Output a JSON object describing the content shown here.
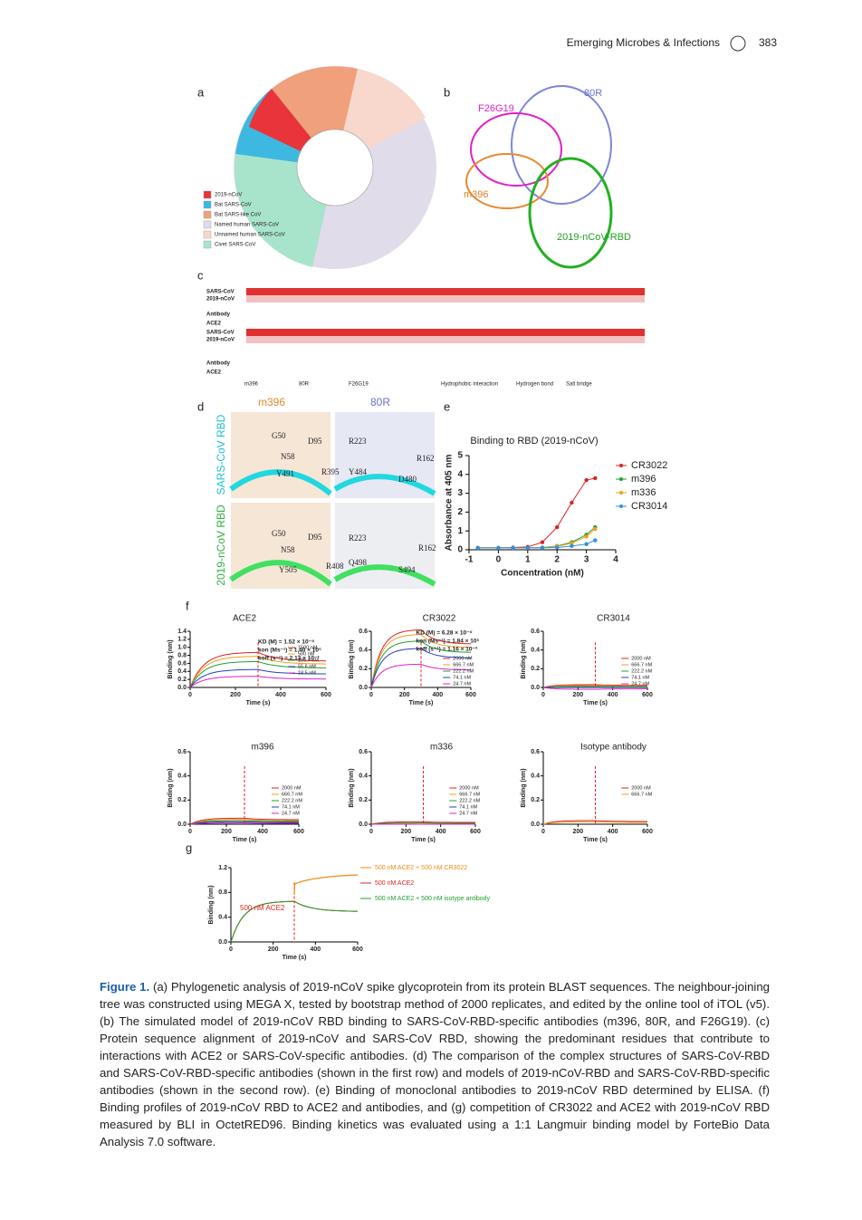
{
  "header": {
    "journal": "Emerging Microbes & Infections",
    "page": "383"
  },
  "panel_a": {
    "label": "a",
    "legend": [
      {
        "name": "2019-nCoV",
        "color": "#e8343a"
      },
      {
        "name": "Bat SARS-CoV",
        "color": "#3db8e0"
      },
      {
        "name": "Bat SARS-like CoV",
        "color": "#f0a07a"
      },
      {
        "name": "Named human SARS-CoV",
        "color": "#e0dcea"
      },
      {
        "name": "Unnamed human SARS-CoV",
        "color": "#f8d8cc"
      },
      {
        "name": "Civet SARS-CoV",
        "color": "#a8e4cc"
      }
    ]
  },
  "panel_b": {
    "label": "b",
    "names": [
      {
        "text": "F26G19",
        "color": "#e020c8"
      },
      {
        "text": "80R",
        "color": "#6a72c8"
      },
      {
        "text": "m396",
        "color": "#e08020"
      },
      {
        "text": "2019-nCoV-RBD",
        "color": "#22a022"
      }
    ]
  },
  "panel_c": {
    "label": "c",
    "rows": [
      "SARS-CoV",
      "2019-nCoV",
      "Antibody",
      "ACE2",
      "SARS-CoV",
      "2019-nCoV",
      "Antibody",
      "ACE2"
    ],
    "key": [
      "m396",
      "80R",
      "F26G19",
      "Hydrophobic interaction",
      "Hydrogen bond",
      "Salt bridge"
    ]
  },
  "panel_d": {
    "label": "d",
    "columns": [
      "m396",
      "80R"
    ],
    "rows": [
      "SARS-CoV RBD",
      "2019-nCoV RBD"
    ],
    "residues": [
      "G50",
      "D95",
      "N58",
      "Y491",
      "R395",
      "R223",
      "R162",
      "Y484",
      "D480",
      "G50",
      "D95",
      "N58",
      "Y505",
      "R408",
      "R223",
      "R162",
      "Q498",
      "S494"
    ]
  },
  "panel_e": {
    "label": "e",
    "type": "scatter",
    "title": "Binding to RBD (2019-nCoV)",
    "x_label": "Concentration (nM)",
    "y_label": "Absorbance at 405 nm",
    "x": [
      -0.7,
      0,
      0.5,
      1,
      1.5,
      2,
      2.5,
      3,
      3.3
    ],
    "xlim": [
      -1,
      4
    ],
    "xticks": [
      -1,
      0,
      1,
      2,
      3,
      4
    ],
    "ylim": [
      0,
      5
    ],
    "yticks": [
      0,
      1,
      2,
      3,
      4,
      5
    ],
    "series": [
      {
        "name": "CR3022",
        "color": "#e02020",
        "values": [
          0.1,
          0.1,
          0.12,
          0.15,
          0.4,
          1.2,
          2.5,
          3.7,
          3.8
        ]
      },
      {
        "name": "m396",
        "color": "#20a030",
        "values": [
          0.1,
          0.1,
          0.1,
          0.1,
          0.12,
          0.2,
          0.4,
          0.8,
          1.2
        ]
      },
      {
        "name": "m336",
        "color": "#f0a020",
        "values": [
          0.1,
          0.1,
          0.1,
          0.1,
          0.11,
          0.18,
          0.35,
          0.7,
          1.1
        ]
      },
      {
        "name": "CR3014",
        "color": "#3090e0",
        "values": [
          0.1,
          0.1,
          0.1,
          0.1,
          0.1,
          0.12,
          0.2,
          0.3,
          0.5
        ]
      }
    ]
  },
  "panel_f": {
    "label": "f",
    "plots": [
      {
        "title": "ACE2",
        "y_label": "Binding (nm)",
        "x_label": "Time (s)",
        "yticks": [
          {
            "value": 0,
            "label": "0.0"
          },
          {
            "value": 0.2,
            "label": "0.2"
          },
          {
            "value": 0.4,
            "label": "0.4"
          },
          {
            "value": 0.6,
            "label": "0.6"
          },
          {
            "value": 0.8,
            "label": "0.8"
          },
          {
            "value": 1,
            "label": "1.0"
          },
          {
            "value": 1.2,
            "label": "1.2"
          },
          {
            "value": 1.4,
            "label": "1.4"
          }
        ],
        "xticks": [
          0,
          200,
          400,
          600
        ],
        "kinetics": [
          "KD (M) = 1.52 × 10⁻⁸",
          "kon (Ms⁻¹) = 1.40 × 10⁵",
          "koff (s⁻¹) = 2.13 × 10⁻³"
        ],
        "legend": [
          {
            "name": "1500 nM",
            "color": "#e02020"
          },
          {
            "name": "500 nM",
            "color": "#f0a020"
          },
          {
            "name": "166.7 nM",
            "color": "#20a030"
          },
          {
            "name": "55.6 nM",
            "color": "#2040c0"
          },
          {
            "name": "18.5 nM",
            "color": "#e020c8"
          }
        ]
      },
      {
        "title": "CR3022",
        "y_label": "Binding (nm)",
        "x_label": "Time (s)",
        "yticks": [
          {
            "value": 0,
            "label": "0.0"
          },
          {
            "value": 0.2,
            "label": "0.2"
          },
          {
            "value": 0.4,
            "label": "0.4"
          },
          {
            "value": 0.6,
            "label": "0.6"
          }
        ],
        "xticks": [
          0,
          200,
          400,
          600
        ],
        "kinetics": [
          "KD (M) = 6.28 × 10⁻⁹",
          "kon (Ms⁻¹) = 1.84 × 10⁵",
          "koff (s⁻¹) = 1.16 × 10⁻³"
        ],
        "legend": [
          {
            "name": "2000 nM",
            "color": "#e02020"
          },
          {
            "name": "666.7 nM",
            "color": "#f0a020"
          },
          {
            "name": "222.2 nM",
            "color": "#20a030"
          },
          {
            "name": "74.1 nM",
            "color": "#2040c0"
          },
          {
            "name": "24.7 nM",
            "color": "#e020c8"
          }
        ]
      },
      {
        "title": "CR3014",
        "y_label": "Binding (nm)",
        "x_label": "Time (s)",
        "yticks": [
          {
            "value": 0,
            "label": "0.0"
          },
          {
            "value": 0.2,
            "label": "0.2"
          },
          {
            "value": 0.4,
            "label": "0.4"
          },
          {
            "value": 0.6,
            "label": "0.6"
          }
        ],
        "xticks": [
          0,
          200,
          400,
          600
        ],
        "legend": [
          {
            "name": "2000 nM",
            "color": "#e02020"
          },
          {
            "name": "666.7 nM",
            "color": "#f0a020"
          },
          {
            "name": "222.2 nM",
            "color": "#20a030"
          },
          {
            "name": "74.1 nM",
            "color": "#2040c0"
          },
          {
            "name": "24.7 nM",
            "color": "#e020c8"
          }
        ]
      },
      {
        "title": "m396",
        "y_label": "Binding (nm)",
        "x_label": "Time (s)",
        "yticks": [
          {
            "value": 0,
            "label": "0.0"
          },
          {
            "value": 0.2,
            "label": "0.2"
          },
          {
            "value": 0.4,
            "label": "0.4"
          },
          {
            "value": 0.6,
            "label": "0.6"
          }
        ],
        "xticks": [
          0,
          200,
          400,
          600
        ],
        "legend": [
          {
            "name": "2000 nM",
            "color": "#e02020"
          },
          {
            "name": "666.7 nM",
            "color": "#f0a020"
          },
          {
            "name": "222.2 nM",
            "color": "#20a030"
          },
          {
            "name": "74.1 nM",
            "color": "#2040c0"
          },
          {
            "name": "24.7 nM",
            "color": "#e020c8"
          }
        ]
      },
      {
        "title": "m336",
        "y_label": "Binding (nm)",
        "x_label": "Time (s)",
        "yticks": [
          {
            "value": 0,
            "label": "0.0"
          },
          {
            "value": 0.2,
            "label": "0.2"
          },
          {
            "value": 0.4,
            "label": "0.4"
          },
          {
            "value": 0.6,
            "label": "0.6"
          }
        ],
        "xticks": [
          0,
          200,
          400,
          600
        ],
        "legend": [
          {
            "name": "2000 nM",
            "color": "#e02020"
          },
          {
            "name": "666.7 nM",
            "color": "#f0a020"
          },
          {
            "name": "222.2 nM",
            "color": "#20a030"
          },
          {
            "name": "74.1 nM",
            "color": "#2040c0"
          },
          {
            "name": "24.7 nM",
            "color": "#e020c8"
          }
        ]
      },
      {
        "title": "Isotype antibody",
        "y_label": "Binding (nm)",
        "x_label": "Time (s)",
        "yticks": [
          {
            "value": 0,
            "label": "0.0"
          },
          {
            "value": 0.2,
            "label": "0.2"
          },
          {
            "value": 0.4,
            "label": "0.4"
          },
          {
            "value": 0.6,
            "label": "0.6"
          }
        ],
        "xticks": [
          0,
          200,
          400,
          600
        ],
        "legend": [
          {
            "name": "2000 nM",
            "color": "#e02020"
          },
          {
            "name": "666.7 nM",
            "color": "#f0a020"
          }
        ]
      }
    ]
  },
  "panel_g": {
    "label": "g",
    "y_label": "Binding (nm)",
    "x_label": "Time (s)",
    "yticks": [
      {
        "value": 0,
        "label": "0.0"
      },
      {
        "value": 0.4,
        "label": "0.4"
      },
      {
        "value": 0.8,
        "label": "0.8"
      },
      {
        "value": 1.2,
        "label": "1.2"
      }
    ],
    "xticks": [
      0,
      200,
      400,
      600
    ],
    "annotation": "500 nM ACE2",
    "legend": [
      {
        "name": "500 nM ACE2 + 500 nM CR3022",
        "color": "#f08a10"
      },
      {
        "name": "500 nM ACE2",
        "color": "#e02020"
      },
      {
        "name": "500 nM ACE2 + 500 nM isotype antibody",
        "color": "#20a030"
      }
    ]
  },
  "caption": {
    "label": "Figure 1.",
    "text": "(a) Phylogenetic analysis of 2019-nCoV spike glycoprotein from its protein BLAST sequences. The neighbour-joining tree was constructed using MEGA X, tested by bootstrap method of 2000 replicates, and edited by the online tool of iTOL (v5). (b) The simulated model of 2019-nCoV RBD binding to SARS-CoV-RBD-specific antibodies (m396, 80R, and F26G19). (c) Protein sequence alignment of 2019-nCoV and SARS-CoV RBD, showing the predominant residues that contribute to interactions with ACE2 or SARS-CoV-specific antibodies. (d) The comparison of the complex structures of SARS-CoV-RBD and SARS-CoV-RBD-specific antibodies (shown in the first row) and models of 2019-nCoV-RBD and SARS-CoV-RBD-specific antibodies (shown in the second row). (e) Binding of monoclonal antibodies to 2019-nCoV RBD determined by ELISA. (f) Binding profiles of 2019-nCoV RBD to ACE2 and antibodies, and (g) competition of CR3022 and ACE2 with 2019-nCoV RBD measured by BLI in OctetRED96. Binding kinetics was evaluated using a 1:1 Langmuir binding model by ForteBio Data Analysis 7.0 software."
  }
}
